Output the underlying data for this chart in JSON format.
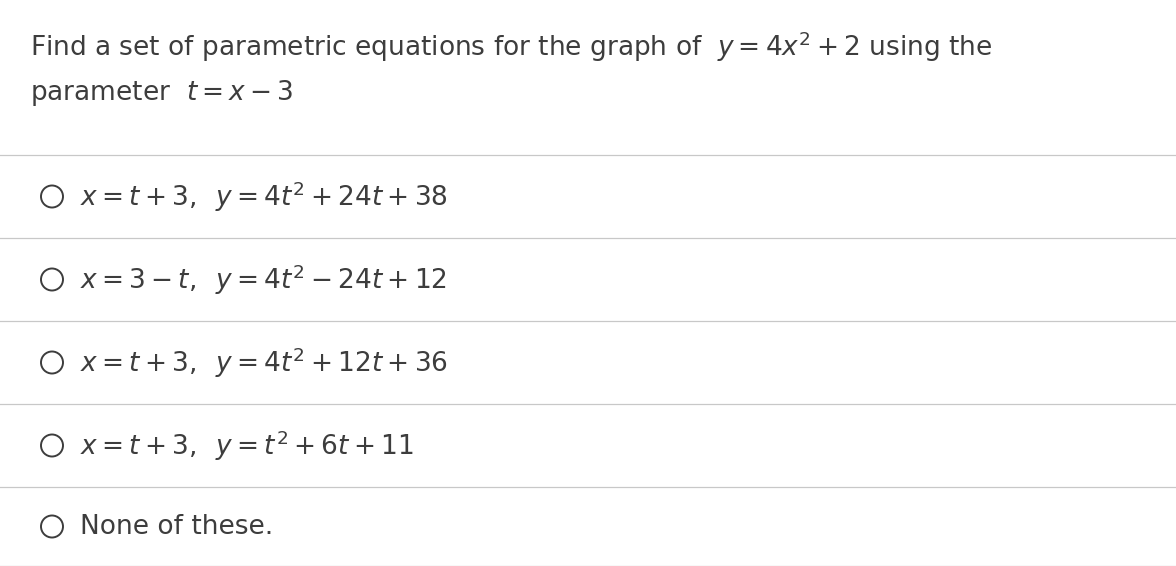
{
  "background_color": "#ffffff",
  "title_line1": "Find a set of parametric equations for the graph of  $y = 4x^2 + 2$ using the",
  "title_line2": "parameter  $t = x - 3$",
  "options": [
    "$x = t + 3,\\;\\; y = 4t^2 + 24t + 38$",
    "$x = 3 - t,\\;\\; y = 4t^2 - 24t + 12$",
    "$x = t + 3,\\;\\; y = 4t^2 + 12t + 36$",
    "$x = t + 3,\\;\\; y = t^2 + 6t + 11$",
    "None of these."
  ],
  "text_color": "#3d3d3d",
  "line_color": "#c8c8c8",
  "circle_color": "#3d3d3d",
  "title_fontsize": 19,
  "option_fontsize": 19
}
